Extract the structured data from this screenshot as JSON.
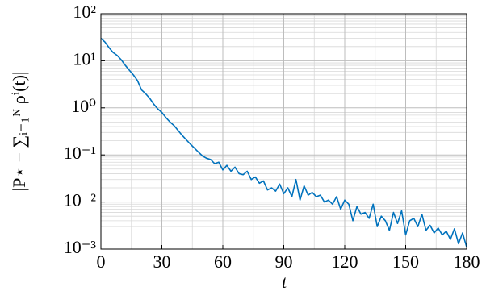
{
  "chart_data": {
    "type": "line",
    "xlabel": "t",
    "ylabel": "|P⋆ − ∑ᵢ₌₁ᴺ ρⁱ(t)|",
    "x": [
      0,
      2,
      4,
      6,
      8,
      10,
      12,
      14,
      16,
      18,
      20,
      22,
      24,
      26,
      28,
      30,
      32,
      34,
      36,
      38,
      40,
      42,
      44,
      46,
      48,
      50,
      52,
      54,
      56,
      58,
      60,
      62,
      64,
      66,
      68,
      70,
      72,
      74,
      76,
      78,
      80,
      82,
      84,
      86,
      88,
      90,
      92,
      94,
      96,
      98,
      100,
      102,
      104,
      106,
      108,
      110,
      112,
      114,
      116,
      118,
      120,
      122,
      124,
      126,
      128,
      130,
      132,
      134,
      136,
      138,
      140,
      142,
      144,
      146,
      148,
      150,
      152,
      154,
      156,
      158,
      160,
      162,
      164,
      166,
      168,
      170,
      172,
      174,
      176,
      178,
      180
    ],
    "series": [
      {
        "color": "#0072bd",
        "values": [
          30,
          25,
          19,
          15,
          13,
          10.5,
          8,
          6.3,
          5,
          3.8,
          2.4,
          2,
          1.6,
          1.2,
          0.95,
          0.8,
          0.62,
          0.5,
          0.42,
          0.33,
          0.26,
          0.21,
          0.17,
          0.14,
          0.115,
          0.095,
          0.085,
          0.08,
          0.065,
          0.07,
          0.048,
          0.06,
          0.045,
          0.055,
          0.04,
          0.038,
          0.045,
          0.03,
          0.034,
          0.025,
          0.028,
          0.018,
          0.02,
          0.017,
          0.024,
          0.015,
          0.02,
          0.013,
          0.03,
          0.011,
          0.022,
          0.014,
          0.016,
          0.013,
          0.014,
          0.01,
          0.011,
          0.009,
          0.013,
          0.007,
          0.011,
          0.009,
          0.004,
          0.008,
          0.0055,
          0.006,
          0.0045,
          0.009,
          0.003,
          0.005,
          0.004,
          0.0025,
          0.006,
          0.0035,
          0.0065,
          0.002,
          0.004,
          0.0045,
          0.003,
          0.0055,
          0.0025,
          0.0032,
          0.0022,
          0.0028,
          0.002,
          0.0024,
          0.0016,
          0.0027,
          0.0013,
          0.0022,
          0.0011
        ]
      }
    ],
    "xlim": [
      0,
      180
    ],
    "xticks": [
      0,
      30,
      60,
      90,
      120,
      150,
      180
    ],
    "ylim": [
      0.001,
      100
    ],
    "yticks": [
      {
        "value": 0.001,
        "label": "10⁻³"
      },
      {
        "value": 0.01,
        "label": "10⁻²"
      },
      {
        "value": 0.1,
        "label": "10⁻¹"
      },
      {
        "value": 1,
        "label": "10⁰"
      },
      {
        "value": 10,
        "label": "10¹"
      },
      {
        "value": 100,
        "label": "10²"
      }
    ],
    "log_y": true,
    "grid": true
  }
}
